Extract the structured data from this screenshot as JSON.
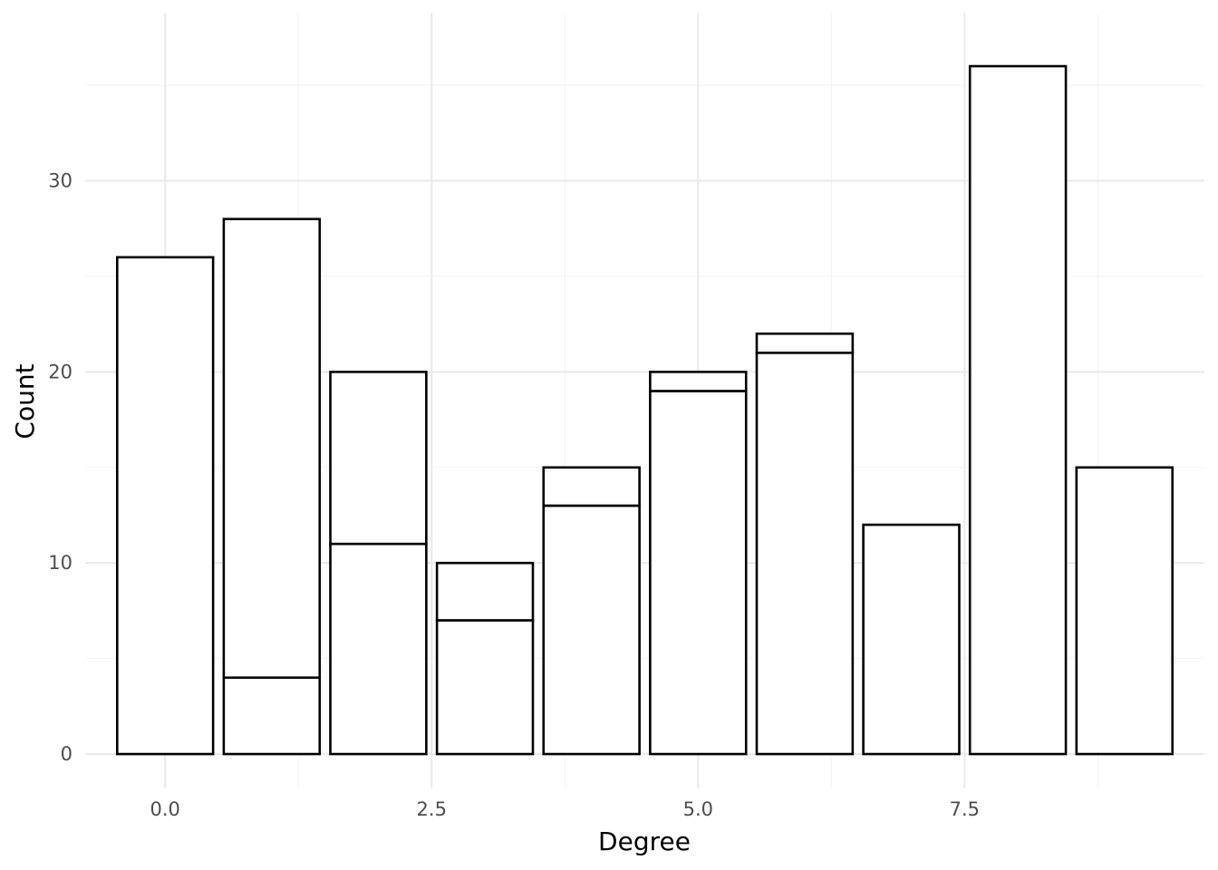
{
  "chart_data": {
    "type": "bar",
    "stacked": true,
    "title": "",
    "xlabel": "Degree",
    "ylabel": "Count",
    "x": [
      0,
      1,
      2,
      3,
      4,
      5,
      6,
      7,
      8,
      9
    ],
    "series": [
      {
        "values": [
          26,
          4,
          11,
          7,
          13,
          19,
          21,
          12,
          36,
          15
        ]
      },
      {
        "values": [
          0,
          24,
          9,
          3,
          2,
          1,
          1,
          0,
          0,
          0
        ]
      }
    ],
    "xlim": [
      -0.75,
      9.75
    ],
    "ylim": [
      -1.8,
      38.8
    ],
    "x_major_ticks": [
      0,
      2.5,
      5,
      7.5
    ],
    "x_tick_labels": [
      "0.0",
      "2.5",
      "5.0",
      "7.5"
    ],
    "x_minor_ticks": [
      1.25,
      3.75,
      6.25,
      8.75
    ],
    "y_major_ticks": [
      0,
      10,
      20,
      30
    ],
    "y_tick_labels": [
      "0",
      "10",
      "20",
      "30"
    ],
    "y_minor_ticks": [
      5,
      15,
      25,
      35
    ],
    "bar_width": 0.9,
    "grid": true,
    "legend": "none",
    "colors": {
      "bar_fill": "#ffffff",
      "bar_stroke": "#000000",
      "grid": "#ebebeb"
    }
  }
}
